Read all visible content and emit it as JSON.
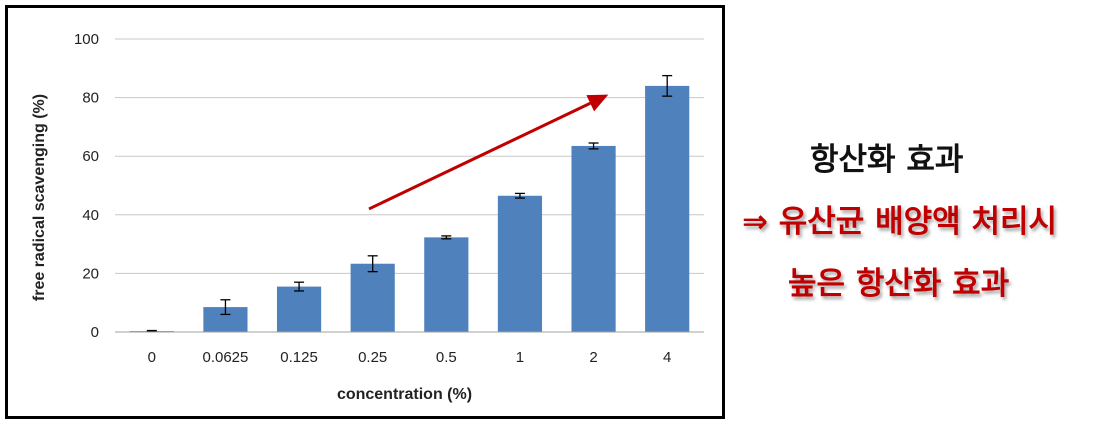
{
  "chart_data": {
    "type": "bar",
    "title": "",
    "xlabel": "concentration (%)",
    "ylabel": "free radical scavenging (%)",
    "categories": [
      "0",
      "0.0625",
      "0.125",
      "0.25",
      "0.5",
      "1",
      "2",
      "4"
    ],
    "values": [
      0.3,
      8.5,
      15.5,
      23.3,
      32.3,
      46.5,
      63.5,
      84.0
    ],
    "errors": [
      0.2,
      2.5,
      1.5,
      2.7,
      0.5,
      0.8,
      1.0,
      3.5
    ],
    "ylim": [
      0,
      100
    ],
    "yticks": [
      "0",
      "20",
      "40",
      "60",
      "80",
      "100"
    ],
    "grid": true,
    "bar_color": "#4f81bd",
    "trend_arrow": {
      "from": [
        3.0,
        42
      ],
      "to": [
        6.2,
        81
      ],
      "color": "#c00000"
    }
  },
  "annotation": {
    "title": "항산화 효과",
    "line1": "⇒ 유산균 배양액 처리시",
    "line2": "높은 항산화 효과",
    "text_color": "#c00000"
  }
}
